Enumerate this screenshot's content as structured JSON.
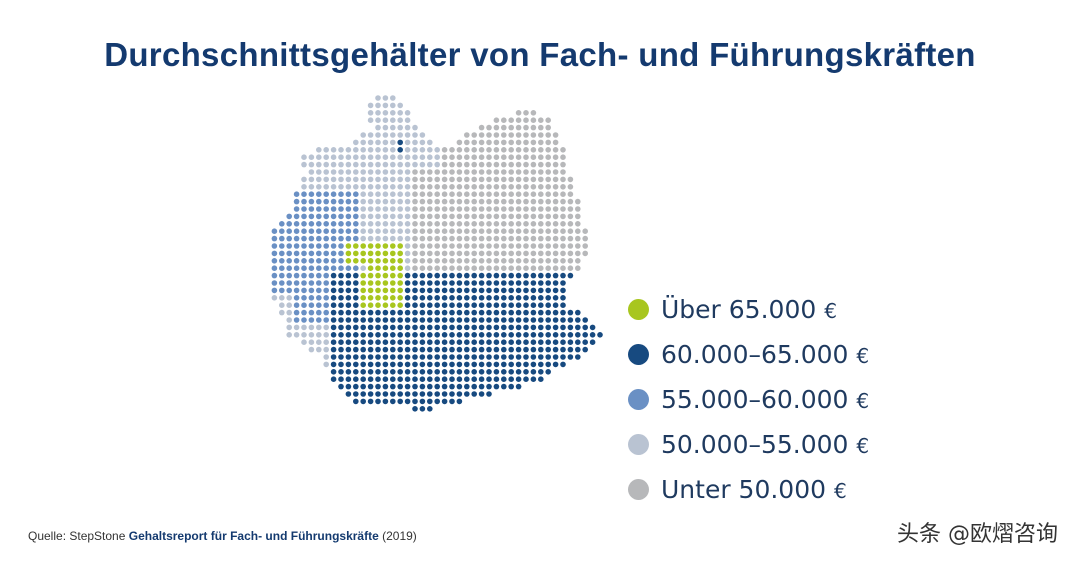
{
  "title": "Durchschnittsgehälter von Fach- und Führungskräften",
  "colors": {
    "over_65000": "#a8c61f",
    "r60_65": "#174a80",
    "r55_60": "#6a90c4",
    "r50_55": "#b9c3d2",
    "under_50000": "#b7b8ba",
    "title": "#143a6f"
  },
  "legend": [
    {
      "label": "Über 65.000",
      "currency": "€",
      "color": "#a8c61f"
    },
    {
      "label": "60.000–65.000",
      "currency": "€",
      "color": "#174a80"
    },
    {
      "label": "55.000–60.000",
      "currency": "€",
      "color": "#6a90c4"
    },
    {
      "label": "50.000–55.000",
      "currency": "€",
      "color": "#b9c3d2"
    },
    {
      "label": "Unter 50.000",
      "currency": "€",
      "color": "#b7b8ba"
    }
  ],
  "source": {
    "prefix": "Quelle: StepStone ",
    "report": "Gehaltsreport für Fach- und Führungskräfte",
    "year": " (2019)"
  },
  "watermark": "头条 @欧熠咨询"
}
